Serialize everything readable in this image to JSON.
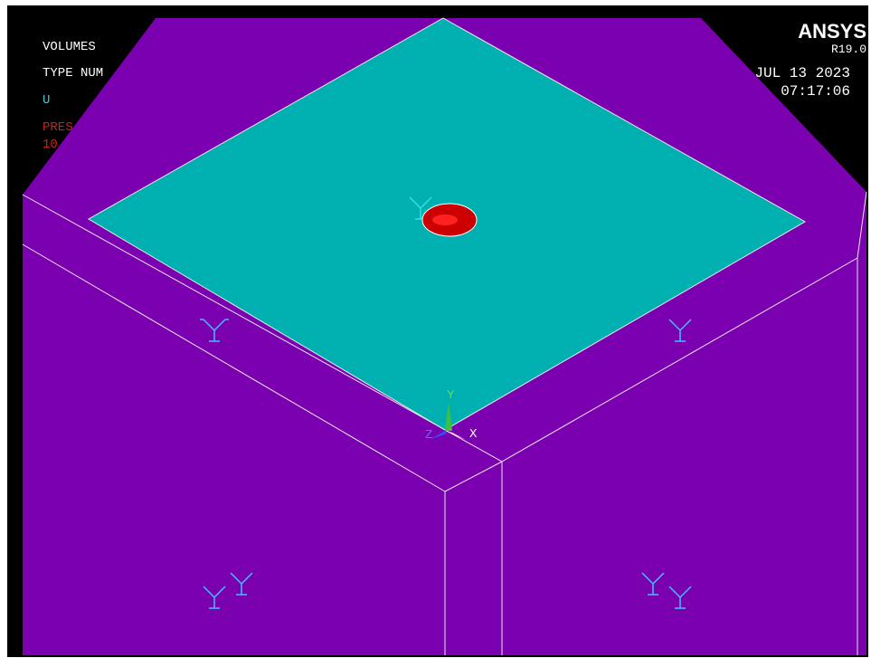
{
  "legend": {
    "lines": [
      "VOLUMES",
      "TYPE NUM",
      "U",
      "PRES",
      "10"
    ]
  },
  "brand": {
    "name": "ANSYS",
    "version": "R19.0",
    "date": "JUL 13 2023",
    "time": "07:17:06"
  },
  "triad": {
    "y": "Y",
    "x": "X",
    "z": "Z"
  }
}
